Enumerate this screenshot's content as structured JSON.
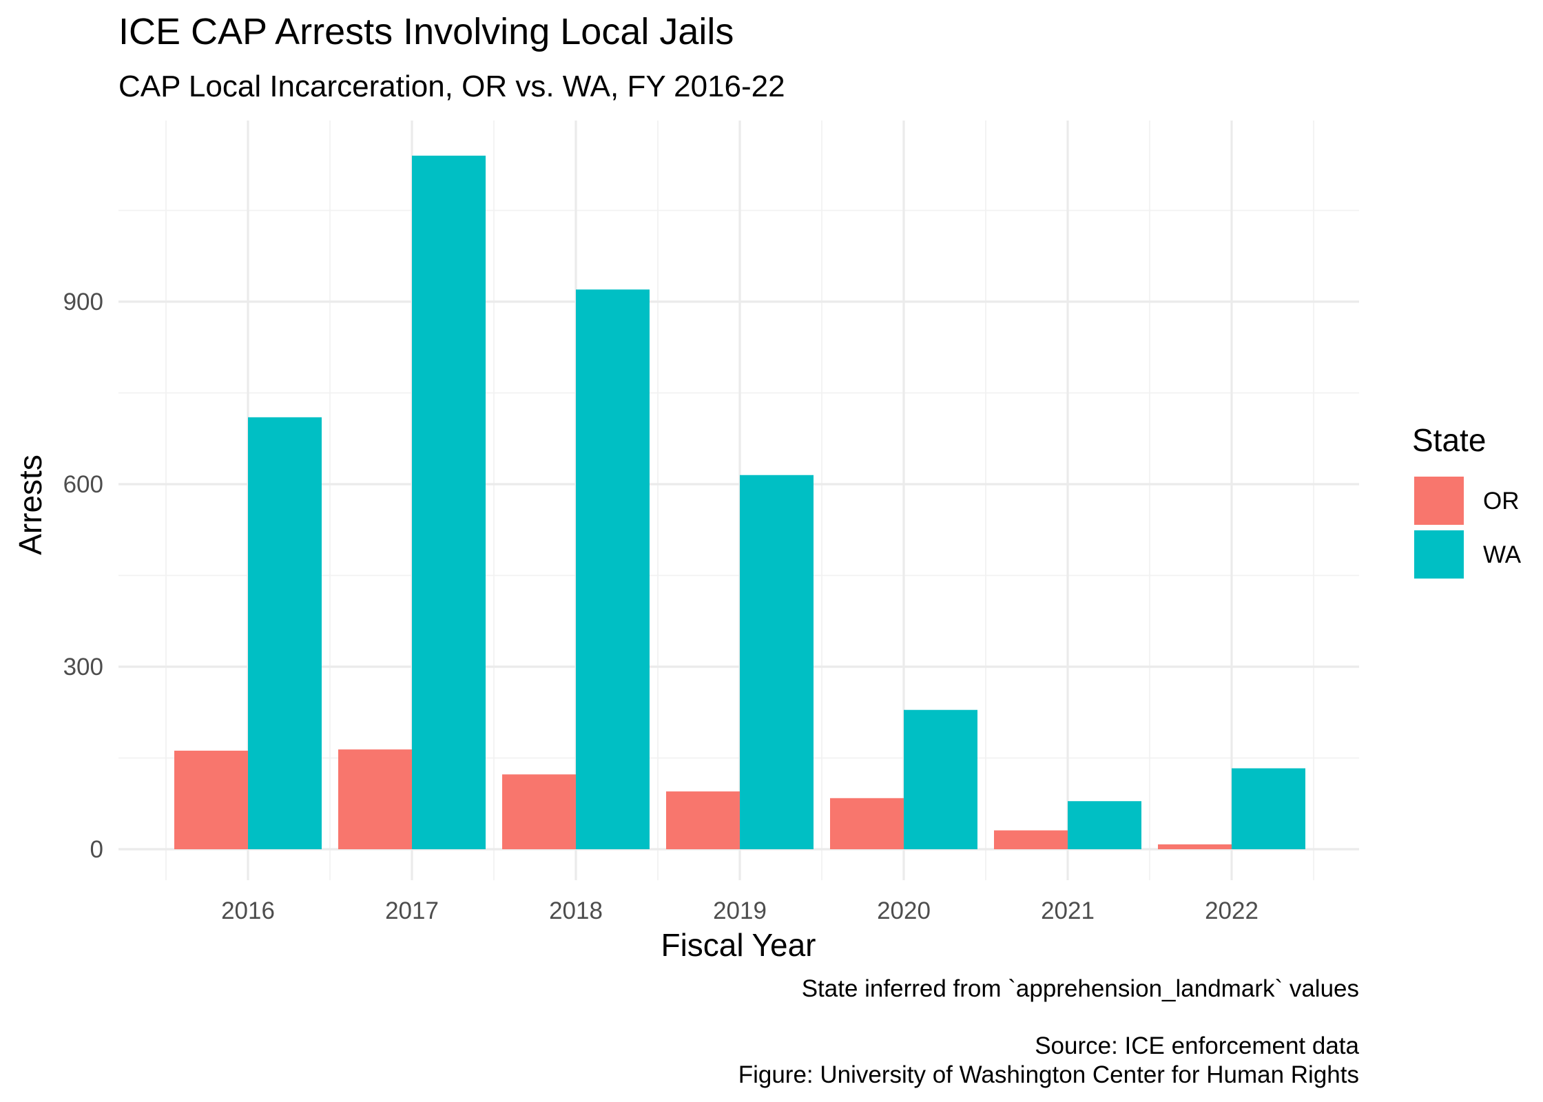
{
  "chart_data": {
    "type": "bar",
    "title": "ICE CAP Arrests Involving Local Jails",
    "subtitle": "CAP Local Incarceration, OR vs. WA, FY 2016-22",
    "xlabel": "Fiscal Year",
    "ylabel": "Arrests",
    "categories": [
      "2016",
      "2017",
      "2018",
      "2019",
      "2020",
      "2021",
      "2022"
    ],
    "series": [
      {
        "name": "OR",
        "color": "#F8766D",
        "values": [
          162,
          164,
          123,
          95,
          84,
          31,
          8
        ]
      },
      {
        "name": "WA",
        "color": "#00BFC4",
        "values": [
          710,
          1140,
          920,
          615,
          229,
          79,
          133
        ]
      }
    ],
    "ylim": [
      0,
      1140
    ],
    "yticks": [
      0,
      300,
      600,
      900
    ],
    "grid": true,
    "legend": {
      "title": "State",
      "position": "right"
    },
    "caption": [
      "State inferred from `apprehension_landmark` values",
      "",
      "Source: ICE enforcement data",
      "Figure: University of Washington Center for Human Rights"
    ]
  }
}
